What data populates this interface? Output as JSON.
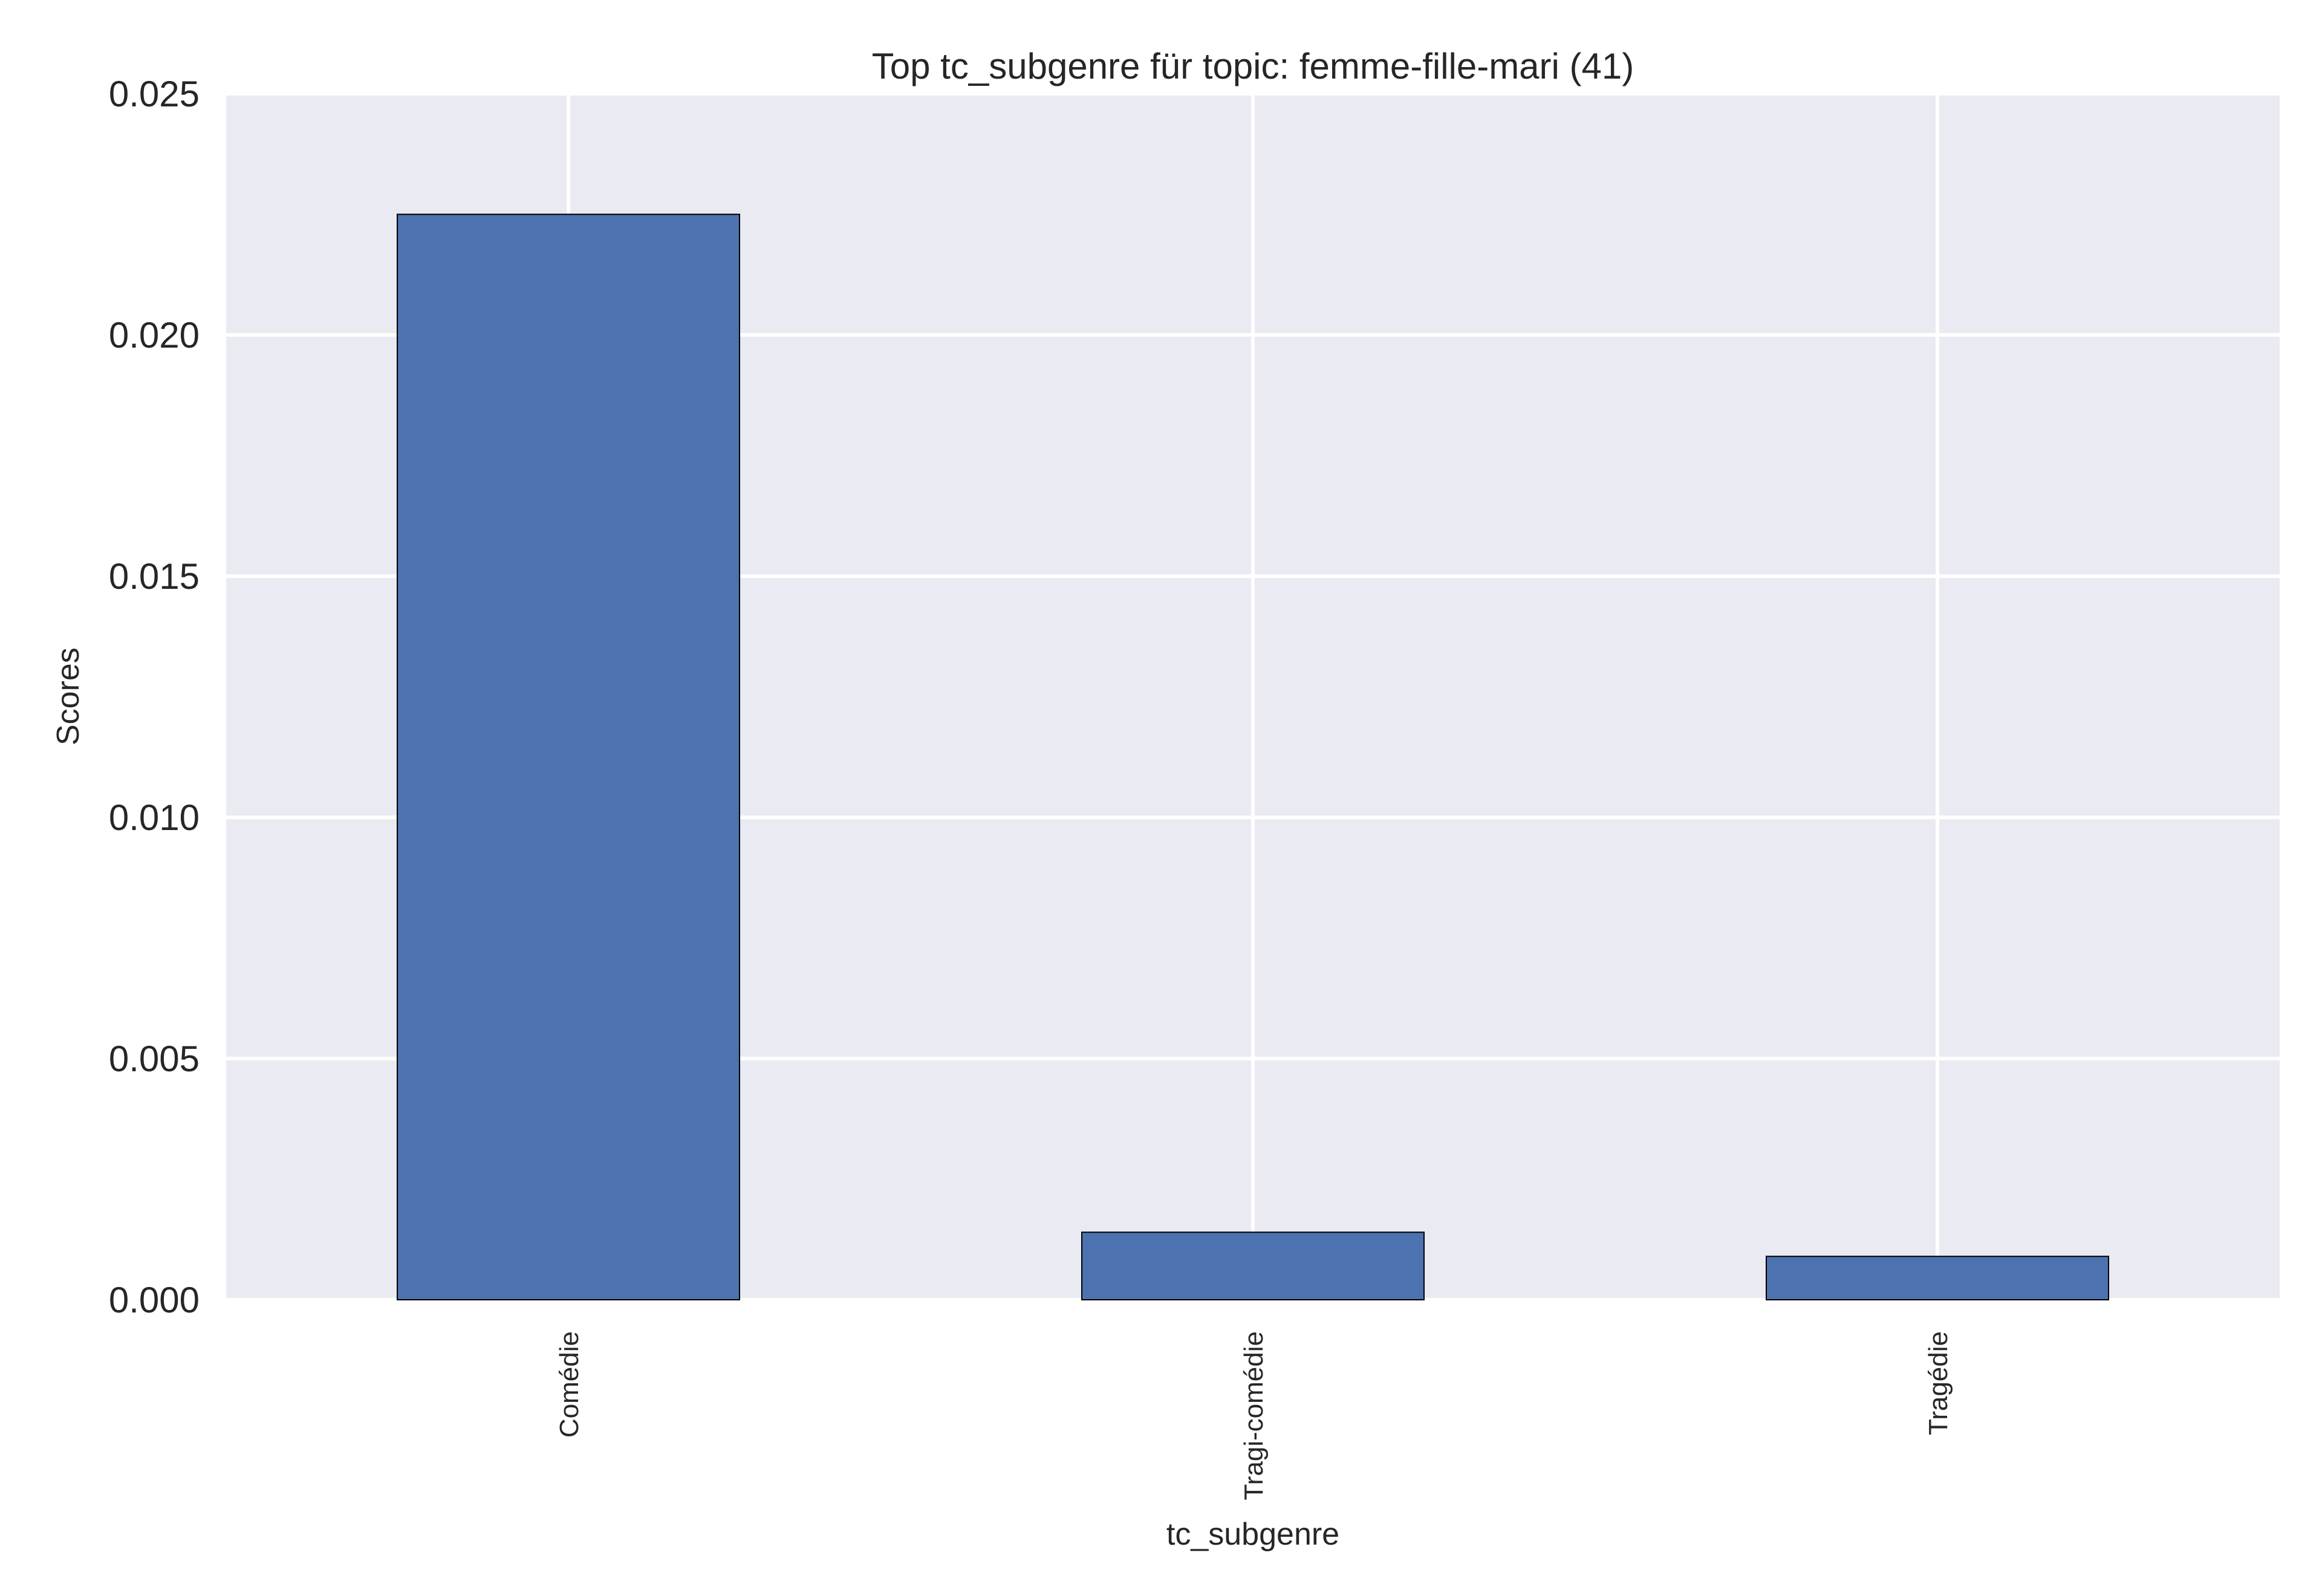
{
  "chart_data": {
    "type": "bar",
    "title": "Top tc_subgenre für topic: femme-fille-mari (41)",
    "xlabel": "tc_subgenre",
    "ylabel": "Scores",
    "categories": [
      "Comédie",
      "Tragi-comédie",
      "Tragédie"
    ],
    "values": [
      0.0225,
      0.0014,
      0.0009
    ],
    "ylim": [
      0,
      0.025
    ],
    "yticks": [
      0.0,
      0.005,
      0.01,
      0.015,
      0.02,
      0.025
    ],
    "ytick_labels": [
      "0.000",
      "0.005",
      "0.010",
      "0.015",
      "0.020",
      "0.025"
    ],
    "grid": true,
    "legend": "none",
    "colors": {
      "bar": "#4c72b0",
      "plot_background": "#eaeaf2",
      "grid": "#ffffff"
    }
  }
}
